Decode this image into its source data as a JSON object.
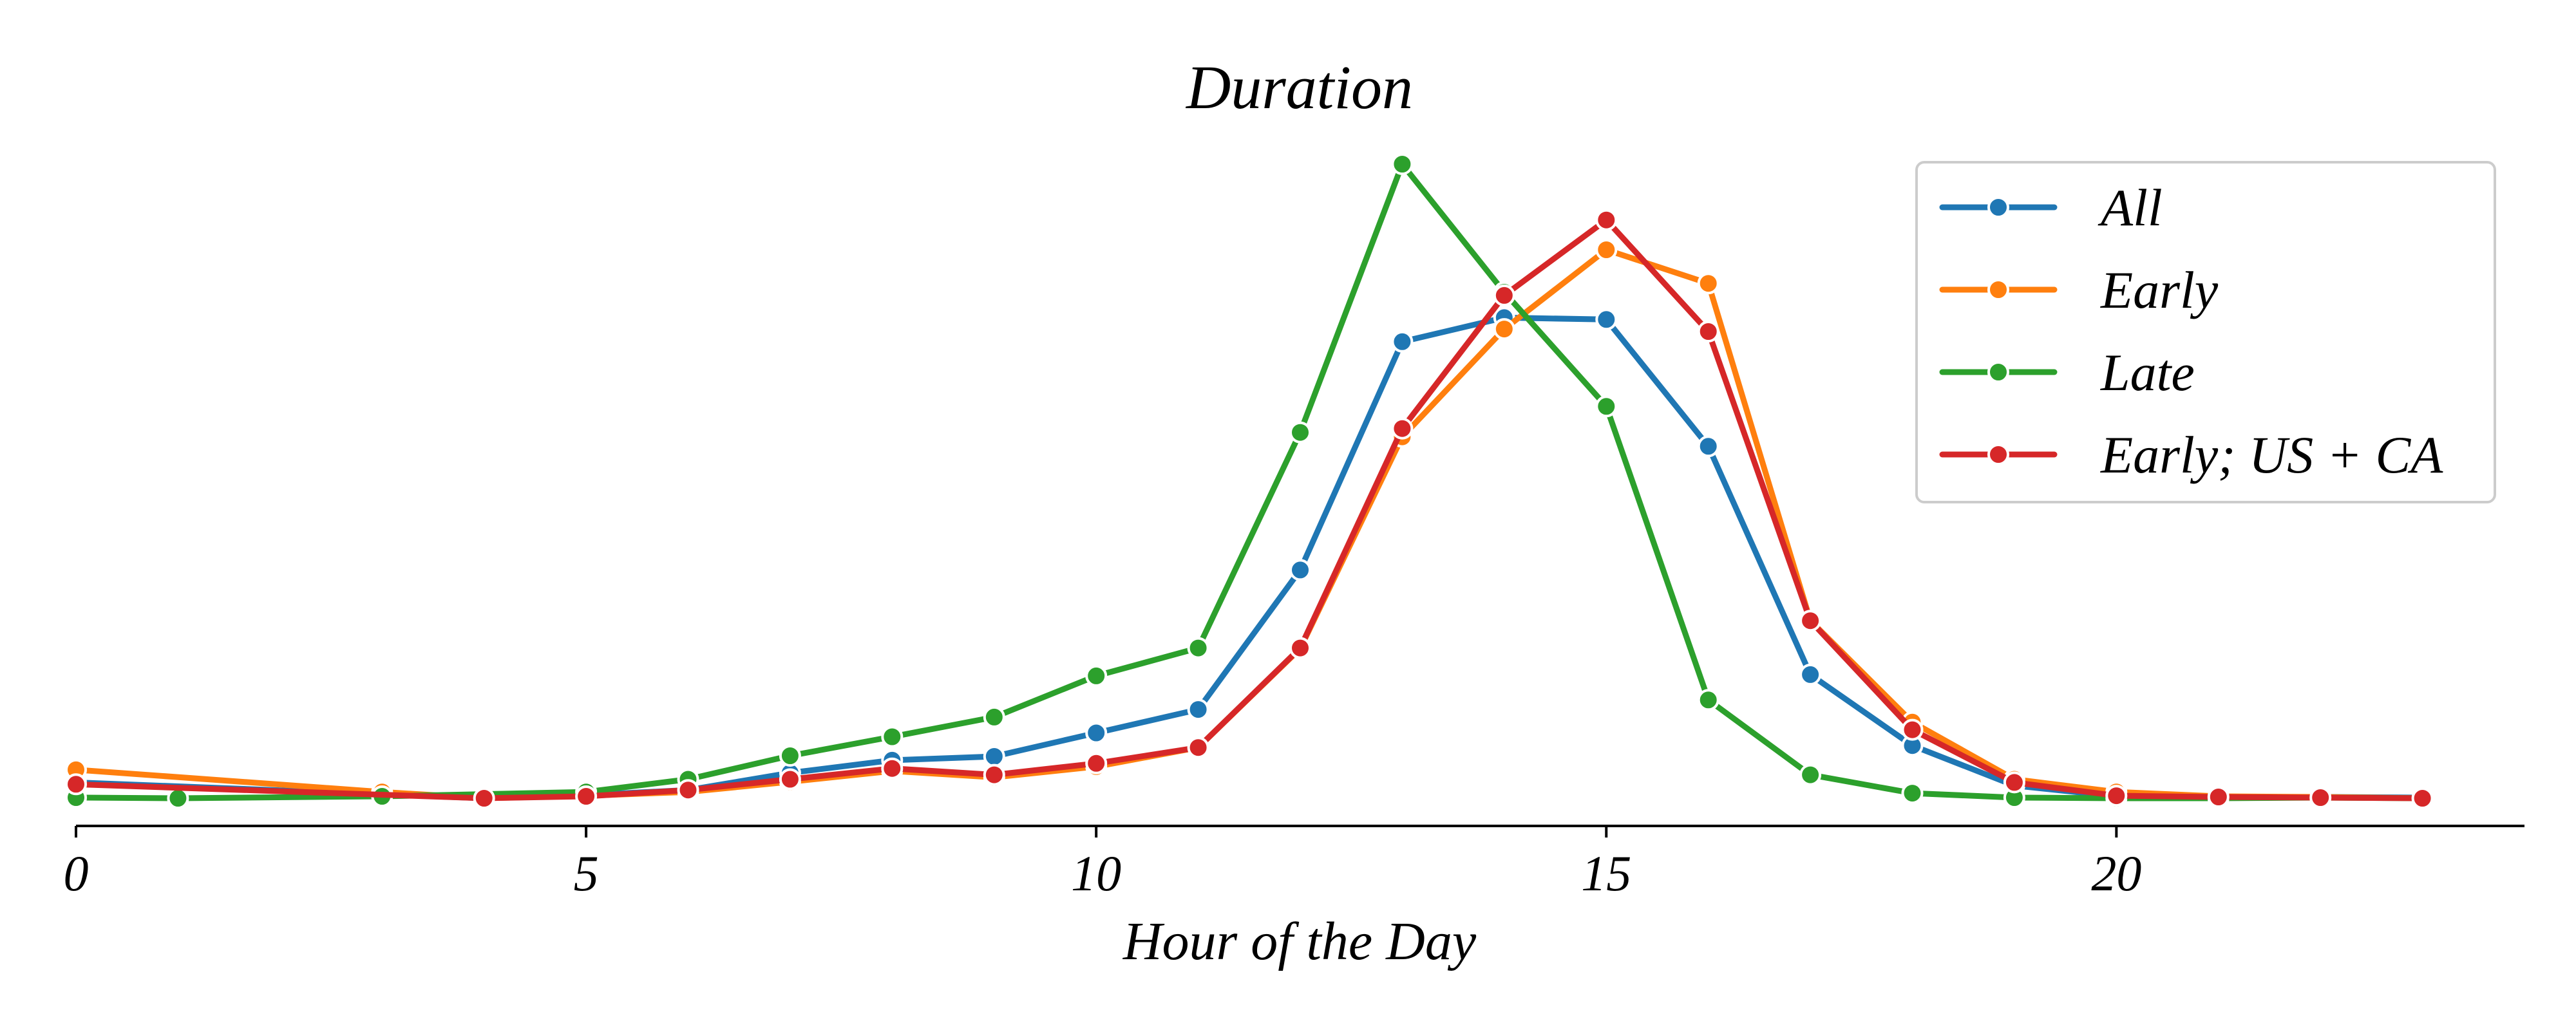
{
  "chart_data": {
    "type": "line",
    "title": "Duration",
    "xlabel": "Hour of the Day",
    "ylabel": "",
    "xlim": [
      0,
      24
    ],
    "ylim": [
      -0.02,
      1.06
    ],
    "x_ticks": [
      0,
      5,
      10,
      15,
      20
    ],
    "x_tick_labels": [
      "0",
      "5",
      "10",
      "15",
      "20"
    ],
    "y_axis_visible": false,
    "grid": false,
    "legend_position": "top-right",
    "series": [
      {
        "name": "All",
        "color": "#1f77b4",
        "x": [
          0,
          4,
          5,
          6,
          7,
          8,
          9,
          10,
          11,
          12,
          13,
          14,
          15,
          16,
          17,
          18,
          19,
          20,
          21,
          22,
          23
        ],
        "values": [
          0.025,
          0.0,
          0.005,
          0.013,
          0.04,
          0.06,
          0.066,
          0.103,
          0.14,
          0.36,
          0.72,
          0.758,
          0.755,
          0.555,
          0.195,
          0.083,
          0.02,
          0.003,
          0.002,
          0.002,
          0.001
        ]
      },
      {
        "name": "Early",
        "color": "#ff7f0e",
        "x": [
          0,
          3,
          4,
          5,
          6,
          7,
          8,
          9,
          10,
          11,
          12,
          13,
          14,
          15,
          16,
          17,
          18,
          19,
          20,
          21,
          22,
          23
        ],
        "values": [
          0.045,
          0.01,
          0.0,
          0.004,
          0.01,
          0.026,
          0.043,
          0.033,
          0.05,
          0.08,
          0.236,
          0.57,
          0.74,
          0.865,
          0.812,
          0.28,
          0.12,
          0.03,
          0.01,
          0.003,
          0.002,
          0.0
        ]
      },
      {
        "name": "Late",
        "color": "#2ca02c",
        "x": [
          0,
          1,
          3,
          5,
          6,
          7,
          8,
          9,
          10,
          11,
          12,
          13,
          14,
          15,
          16,
          17,
          18,
          19,
          20,
          21,
          22,
          23
        ],
        "values": [
          0.001,
          0.0,
          0.003,
          0.01,
          0.03,
          0.067,
          0.097,
          0.128,
          0.193,
          0.237,
          0.577,
          1.0,
          0.798,
          0.618,
          0.155,
          0.037,
          0.008,
          0.001,
          0.0,
          0.0,
          0.001,
          0.0
        ]
      },
      {
        "name": "Early; US + CA",
        "color": "#d62728",
        "x": [
          0,
          4,
          5,
          6,
          7,
          8,
          9,
          10,
          11,
          12,
          13,
          14,
          15,
          16,
          17,
          18,
          19,
          20,
          21,
          22,
          23
        ],
        "values": [
          0.022,
          0.0,
          0.003,
          0.013,
          0.03,
          0.047,
          0.037,
          0.055,
          0.08,
          0.237,
          0.583,
          0.793,
          0.912,
          0.736,
          0.28,
          0.108,
          0.025,
          0.004,
          0.002,
          0.001,
          0.0
        ]
      }
    ]
  }
}
